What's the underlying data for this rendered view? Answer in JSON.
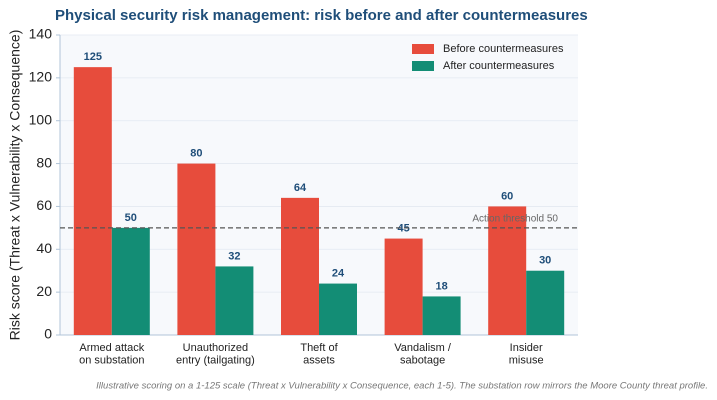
{
  "chart_data": {
    "type": "bar",
    "title": "Physical security risk management: risk before and after countermeasures",
    "y_label": "Risk score (Threat x Vulnerability x Consequence)",
    "footnote": "Illustrative scoring on a 1-125 scale (Threat x Vulnerability x Consequence, each 1-5). The substation row mirrors the Moore County threat profile.",
    "categories": [
      "Armed attack\non substation",
      "Unauthorized\nentry (tailgating)",
      "Theft of\nassets",
      "Vandalism /\nsabotage",
      "Insider\nmisuse"
    ],
    "series": [
      {
        "name": "Before countermeasures",
        "color": "#e74c3c",
        "values": [
          125,
          80,
          64,
          45,
          60
        ]
      },
      {
        "name": "After countermeasures",
        "color": "#138d75",
        "values": [
          50,
          32,
          24,
          18,
          30
        ]
      }
    ],
    "threshold": {
      "value": 50,
      "label": "Action threshold 50"
    },
    "ylim": [
      0,
      140
    ],
    "yticks": [
      0,
      20,
      40,
      60,
      80,
      100,
      120,
      140
    ],
    "grid": true,
    "legend": "upper right"
  }
}
